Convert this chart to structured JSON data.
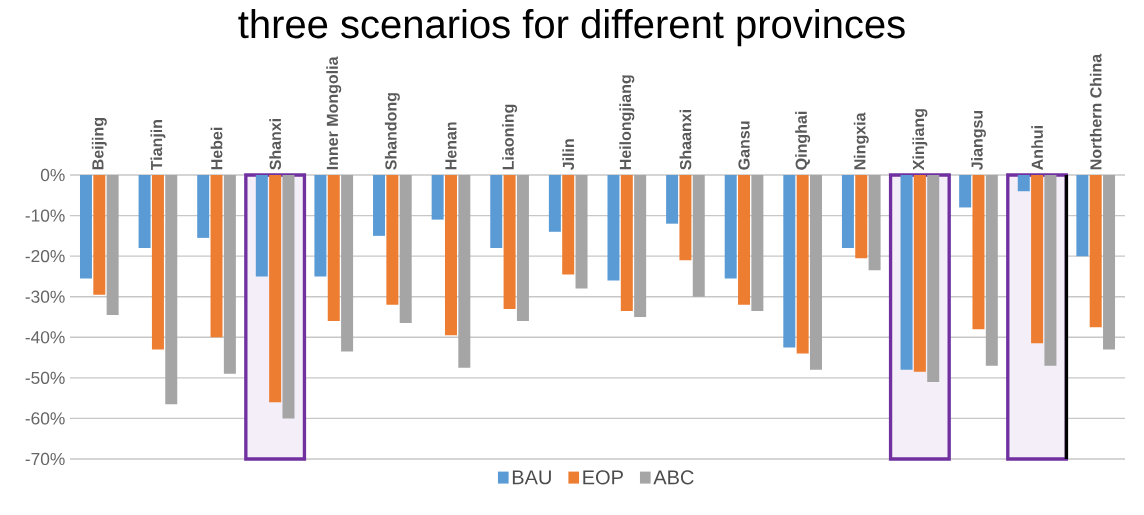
{
  "chart_data": {
    "type": "bar",
    "title": "three scenarios for different provinces",
    "categories": [
      "Beijing",
      "Tianjin",
      "Hebei",
      "Shanxi",
      "Inner Mongolia",
      "Shandong",
      "Henan",
      "Liaoning",
      "Jilin",
      "Heilongjiang",
      "Shaanxi",
      "Gansu",
      "Qinghai",
      "Ningxia",
      "Xinjiang",
      "Jiangsu",
      "Anhui",
      "Northern China"
    ],
    "series": [
      {
        "name": "BAU",
        "color": "#5b9bd5",
        "values": [
          -25.5,
          -18,
          -15.5,
          -25,
          -25,
          -15,
          -11,
          -18,
          -14,
          -26,
          -12,
          -25.5,
          -42.5,
          -18,
          -48,
          -8,
          -4,
          -20
        ]
      },
      {
        "name": "EOP",
        "color": "#ed7d31",
        "values": [
          -29.5,
          -43,
          -40,
          -56,
          -36,
          -32,
          -39.5,
          -33,
          -24.5,
          -33.5,
          -21,
          -32,
          -44,
          -20.5,
          -48.5,
          -38,
          -41.5,
          -37.5
        ]
      },
      {
        "name": "ABC",
        "color": "#a5a5a5",
        "values": [
          -34.5,
          -56.5,
          -49,
          -60,
          -43.5,
          -36.5,
          -47.5,
          -36,
          -28,
          -35,
          -30,
          -33.5,
          -48,
          -23.5,
          -51,
          -47,
          -47,
          -43
        ]
      }
    ],
    "ylim": [
      -70,
      0
    ],
    "yticks": [
      {
        "value": 0,
        "label": "0%"
      },
      {
        "value": -10,
        "label": "-10%"
      },
      {
        "value": -20,
        "label": "-20%"
      },
      {
        "value": -30,
        "label": "-30%"
      },
      {
        "value": -40,
        "label": "-40%"
      },
      {
        "value": -50,
        "label": "-50%"
      },
      {
        "value": -60,
        "label": "-60%"
      },
      {
        "value": -70,
        "label": "-70%"
      }
    ],
    "grid": "y",
    "legend": "bottom",
    "bands": [
      {
        "axis": "x",
        "from": "Shanxi",
        "to": "Shanxi",
        "color": "#7030a0"
      },
      {
        "axis": "x",
        "from": "Xinjiang",
        "to": "Xinjiang",
        "color": "#7030a0"
      },
      {
        "axis": "x",
        "from": "Anhui",
        "to": "Anhui",
        "color": "#7030a0"
      }
    ],
    "ref_lines": [
      {
        "axis": "x",
        "value": "Northern China",
        "color": "#000000"
      }
    ]
  }
}
